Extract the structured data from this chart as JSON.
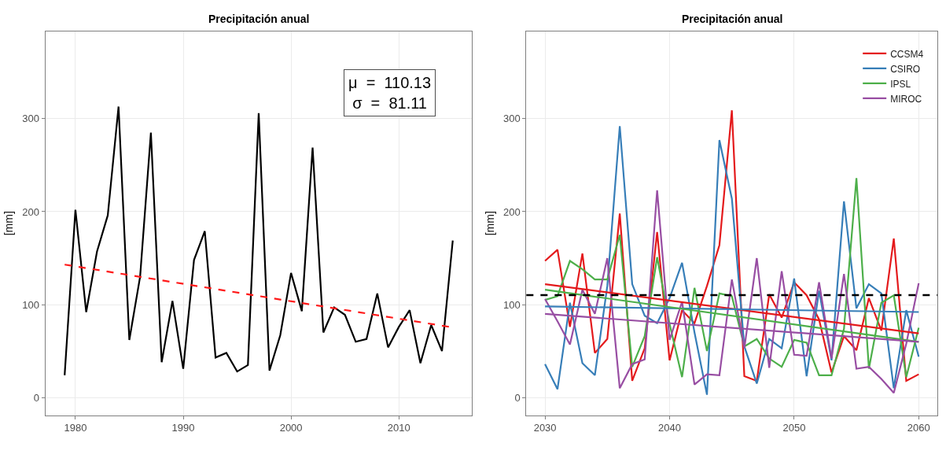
{
  "chart_data": [
    {
      "type": "line",
      "title": "Precipitación anual",
      "ylabel": "[mm]",
      "xlim": [
        1977.2,
        2016.8
      ],
      "xticks": [
        1980,
        1990,
        2000,
        2010
      ],
      "ylim": [
        -19,
        394
      ],
      "yticks": [
        0,
        100,
        200,
        300
      ],
      "grid": true,
      "legend": false,
      "annotations": [
        "μ  =  110.13",
        "σ  =  81.11"
      ],
      "series": [
        {
          "color": "#000000",
          "line_style": "solid",
          "x": [
            1979,
            1980,
            1981,
            1982,
            1983,
            1984,
            1985,
            1986,
            1987,
            1988,
            1989,
            1990,
            1991,
            1992,
            1993,
            1994,
            1995,
            1996,
            1997,
            1998,
            1999,
            2000,
            2001,
            2002,
            2003,
            2004,
            2005,
            2006,
            2007,
            2008,
            2009,
            2010,
            2011,
            2012,
            2013,
            2014,
            2015
          ],
          "values": [
            24,
            202,
            92,
            157,
            196,
            313,
            62,
            130,
            285,
            38,
            104,
            31,
            148,
            179,
            43,
            48,
            28,
            35,
            306,
            29,
            67,
            134,
            93,
            269,
            70,
            97,
            89,
            60,
            63,
            112,
            54,
            76,
            94,
            37,
            78,
            50,
            169
          ]
        },
        {
          "type": "line",
          "color": "#ff1a1a",
          "line_style": "dashed",
          "x": [
            1979,
            2014.7
          ],
          "values": [
            143,
            76
          ]
        }
      ]
    },
    {
      "type": "line",
      "title": "Precipitación anual",
      "ylabel": "[mm]",
      "xlim": [
        2028.5,
        2061.5
      ],
      "xticks": [
        2030,
        2040,
        2050,
        2060
      ],
      "ylim": [
        -19,
        394
      ],
      "yticks": [
        0,
        100,
        200,
        300
      ],
      "grid": true,
      "legend": "top right",
      "x": [
        2030,
        2031,
        2032,
        2033,
        2034,
        2035,
        2036,
        2037,
        2038,
        2039,
        2040,
        2041,
        2042,
        2043,
        2044,
        2045,
        2046,
        2047,
        2048,
        2049,
        2050,
        2051,
        2052,
        2053,
        2054,
        2055,
        2056,
        2057,
        2058,
        2059,
        2060
      ],
      "ref_lines": [
        {
          "axis": "y",
          "value": 110.13,
          "color": "#000000",
          "line_style": "dashed"
        }
      ],
      "series": [
        {
          "name": "CCSM4",
          "color": "#e41a1c",
          "values": [
            147,
            159,
            76,
            155,
            48,
            63,
            198,
            18,
            53,
            178,
            40,
            94,
            80,
            120,
            164,
            309,
            23,
            18,
            111,
            86,
            124,
            110,
            84,
            27,
            66,
            51,
            107,
            72,
            171,
            18,
            25
          ]
        },
        {
          "name": "CSIRO",
          "color": "#377eb8",
          "values": [
            36,
            9,
            102,
            37,
            24,
            120,
            292,
            122,
            88,
            80,
            107,
            145,
            70,
            3,
            277,
            214,
            55,
            15,
            63,
            53,
            128,
            23,
            115,
            40,
            211,
            96,
            122,
            112,
            10,
            94,
            44
          ]
        },
        {
          "name": "IPSL",
          "color": "#4daf4a",
          "values": [
            105,
            109,
            147,
            138,
            127,
            127,
            175,
            33,
            66,
            151,
            79,
            22,
            118,
            50,
            112,
            109,
            55,
            63,
            42,
            33,
            62,
            59,
            24,
            24,
            74,
            236,
            31,
            102,
            110,
            22,
            75
          ]
        },
        {
          "name": "MIROC",
          "color": "#984ea3",
          "values": [
            106,
            82,
            57,
            116,
            90,
            150,
            10,
            36,
            41,
            223,
            62,
            103,
            14,
            25,
            24,
            127,
            53,
            150,
            32,
            136,
            46,
            45,
            124,
            42,
            133,
            31,
            33,
            20,
            5,
            58,
            123
          ]
        },
        {
          "color": "#e41a1c",
          "x": [
            2030,
            2060
          ],
          "values": [
            122,
            69
          ]
        },
        {
          "color": "#377eb8",
          "x": [
            2030,
            2060
          ],
          "values": [
            98,
            92
          ]
        },
        {
          "color": "#4daf4a",
          "x": [
            2030,
            2060
          ],
          "values": [
            116,
            60
          ]
        },
        {
          "color": "#984ea3",
          "x": [
            2030,
            2060
          ],
          "values": [
            90,
            60
          ]
        }
      ]
    }
  ]
}
